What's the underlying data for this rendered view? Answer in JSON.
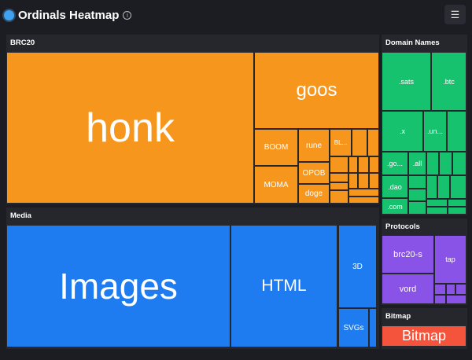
{
  "header": {
    "title": "Ordinals Heatmap",
    "info_icon": "i",
    "menu_icon": "☰"
  },
  "colors": {
    "brc20": "#f7961d",
    "media": "#1e7bf0",
    "domains": "#17c26e",
    "protocols": "#8a53e8",
    "bitmap": "#f4543c"
  },
  "panels": {
    "brc20": {
      "label": "BRC20",
      "tiles": {
        "honk": "honk",
        "goos": "goos",
        "boom": "BOOM",
        "moma": "MOMA",
        "rune": "rune",
        "opob": "OPOB",
        "doge": "doge",
        "bl": "BL..."
      }
    },
    "media": {
      "label": "Media",
      "tiles": {
        "images": "Images",
        "html": "HTML",
        "d3": "3D",
        "svgs": "SVGs"
      }
    },
    "domains": {
      "label": "Domain Names",
      "tiles": {
        "sats": ".sats",
        "btc": ".btc",
        "x": ".x",
        "un": ".un...",
        "go": ".go...",
        "all": ".all",
        "dao": ".dao",
        "com": ".com"
      }
    },
    "protocols": {
      "label": "Protocols",
      "tiles": {
        "brc20s": "brc20-s",
        "vord": "vord",
        "tap": "tap"
      }
    },
    "bitmap": {
      "label": "Bitmap",
      "tiles": {
        "bitmap": "Bitmap"
      }
    }
  }
}
